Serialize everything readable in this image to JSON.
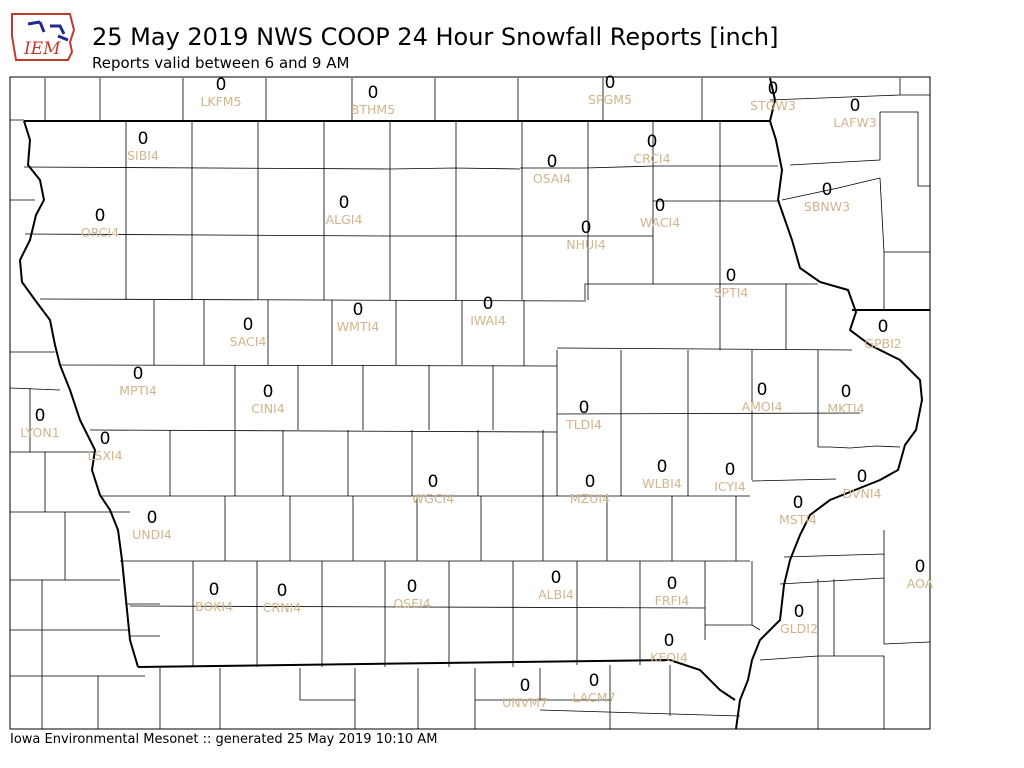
{
  "header": {
    "logo_text": "IEM",
    "title": "25 May 2019 NWS COOP 24 Hour Snowfall Reports [inch]",
    "subtitle": "Reports valid between 6 and 9 AM"
  },
  "footer": {
    "text": "Iowa Environmental Mesonet :: generated 25 May 2019 10:10 AM"
  },
  "colors": {
    "value_text": "#000000",
    "station_id_text": "#d2b48c",
    "county_lines": "#000000",
    "state_lines": "#000000"
  },
  "stations": [
    {
      "id": "LKFM5",
      "value": "0"
    },
    {
      "id": "BTHM5",
      "value": "0"
    },
    {
      "id": "SPGM5",
      "value": "0"
    },
    {
      "id": "STOW3",
      "value": "0"
    },
    {
      "id": "LAFW3",
      "value": "0"
    },
    {
      "id": "SIBI4",
      "value": "0"
    },
    {
      "id": "CRCI4",
      "value": "0"
    },
    {
      "id": "OSAI4",
      "value": "0"
    },
    {
      "id": "SBNW3",
      "value": "0"
    },
    {
      "id": "ORCI4",
      "value": "0"
    },
    {
      "id": "ALGI4",
      "value": "0"
    },
    {
      "id": "WACI4",
      "value": "0"
    },
    {
      "id": "NHUI4",
      "value": "0"
    },
    {
      "id": "SPTI4",
      "value": "0"
    },
    {
      "id": "WMTI4",
      "value": "0"
    },
    {
      "id": "IWAI4",
      "value": "0"
    },
    {
      "id": "SACI4",
      "value": "0"
    },
    {
      "id": "GPBI2",
      "value": "0"
    },
    {
      "id": "MPTI4",
      "value": "0"
    },
    {
      "id": "CINI4",
      "value": "0"
    },
    {
      "id": "AMOI4",
      "value": "0"
    },
    {
      "id": "MKTI4",
      "value": "0"
    },
    {
      "id": "LYON1",
      "value": "0"
    },
    {
      "id": "TLDI4",
      "value": "0"
    },
    {
      "id": "LSXI4",
      "value": "0"
    },
    {
      "id": "WLBI4",
      "value": "0"
    },
    {
      "id": "ICYI4",
      "value": "0"
    },
    {
      "id": "DVNI4",
      "value": "0"
    },
    {
      "id": "WGCI4",
      "value": "0"
    },
    {
      "id": "MZUI4",
      "value": "0"
    },
    {
      "id": "MSTI4",
      "value": "0"
    },
    {
      "id": "UNDI4",
      "value": "0"
    },
    {
      "id": "AOA",
      "value": "0"
    },
    {
      "id": "BOKI4",
      "value": "0"
    },
    {
      "id": "CRNI4",
      "value": "0"
    },
    {
      "id": "OSEI4",
      "value": "0"
    },
    {
      "id": "ALBI4",
      "value": "0"
    },
    {
      "id": "FRFI4",
      "value": "0"
    },
    {
      "id": "GLDI2",
      "value": "0"
    },
    {
      "id": "KEOI4",
      "value": "0"
    },
    {
      "id": "UNVM7",
      "value": "0"
    },
    {
      "id": "LACM7",
      "value": "0"
    }
  ]
}
